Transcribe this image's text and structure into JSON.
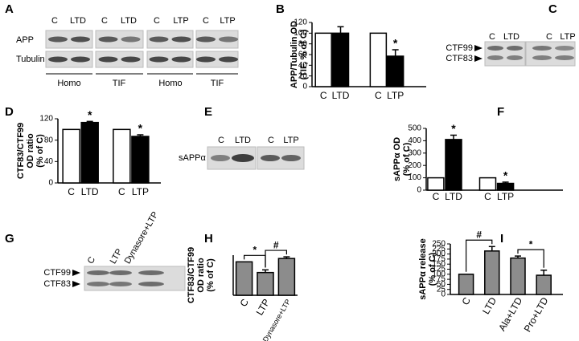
{
  "panel_labels": [
    "A",
    "B",
    "C",
    "D",
    "E",
    "F",
    "G",
    "H",
    "I"
  ],
  "blots": {
    "A": {
      "lanes": [
        "C",
        "LTD",
        "C",
        "LTD",
        "C",
        "LTP",
        "C",
        "LTP"
      ],
      "rows": [
        "APP",
        "Tubulin"
      ],
      "groups": [
        "Homo",
        "TIF",
        "Homo",
        "TIF"
      ]
    },
    "C": {
      "lanes": [
        "C",
        "LTD",
        "C",
        "LTP"
      ],
      "bands": [
        "CTF99",
        "CTF83"
      ]
    },
    "E": {
      "lanes": [
        "C",
        "LTD",
        "C",
        "LTP"
      ],
      "rows": [
        "sAPPα"
      ]
    },
    "G": {
      "lanes": [
        "C",
        "LTP",
        "Dynasore+LTP"
      ],
      "bands": [
        "CTF99",
        "CTF83"
      ]
    }
  },
  "chart_data": [
    {
      "type": "bar",
      "ylabel": [
        "APP/Tubulin OD",
        "(TIF, % of C)"
      ],
      "categories": [
        "C",
        "LTD",
        "C",
        "LTP"
      ],
      "values": [
        100,
        100,
        100,
        57
      ],
      "errors": [
        null,
        12,
        null,
        12
      ],
      "colors": [
        "#ffffff",
        "#000000",
        "#ffffff",
        "#000000"
      ],
      "markers": [
        null,
        null,
        null,
        "*"
      ],
      "ylim": [
        0,
        120
      ],
      "yticks": [
        0,
        20,
        40,
        60,
        80,
        100,
        120
      ]
    },
    {
      "type": "bar",
      "ylabel": [
        "CTF83/CTF99",
        "OD ratio",
        "(% of C)"
      ],
      "categories": [
        "C",
        "LTD",
        "C",
        "LTP"
      ],
      "values": [
        100,
        113,
        100,
        87
      ],
      "errors": [
        null,
        2,
        null,
        3
      ],
      "colors": [
        "#ffffff",
        "#000000",
        "#ffffff",
        "#000000"
      ],
      "markers": [
        null,
        "*",
        null,
        "*"
      ],
      "ylim": [
        0,
        120
      ],
      "yticks": [
        0,
        40,
        80,
        120
      ]
    },
    {
      "type": "bar",
      "ylabel": [
        "sAPPα OD",
        "(% of C)"
      ],
      "categories": [
        "C",
        "LTD",
        "C",
        "LTP"
      ],
      "values": [
        100,
        410,
        100,
        55
      ],
      "errors": [
        null,
        35,
        null,
        10
      ],
      "colors": [
        "#ffffff",
        "#000000",
        "#ffffff",
        "#000000"
      ],
      "markers": [
        null,
        "*",
        null,
        "*"
      ],
      "ylim": [
        0,
        500
      ],
      "yticks": [
        0,
        100,
        200,
        300,
        400,
        500
      ]
    },
    {
      "type": "bar",
      "ylabel": [
        "CTF83/CTF99",
        "OD ratio",
        "(% of C)"
      ],
      "categories": [
        "C",
        "LTP",
        "Dynasore+LTP"
      ],
      "values": [
        100,
        68,
        110
      ],
      "errors": [
        null,
        8,
        5
      ],
      "colors": [
        "#8c8c8c",
        "#8c8c8c",
        "#8c8c8c"
      ],
      "brackets": [
        {
          "categories": [
            "C",
            "LTP"
          ],
          "label": "*"
        },
        {
          "categories": [
            "LTP",
            "Dynasore+LTP"
          ],
          "label": "#"
        }
      ],
      "ylim": [
        0,
        120
      ]
    },
    {
      "type": "bar",
      "ylabel": [
        "sAPPα release",
        "(% of C)"
      ],
      "categories": [
        "C",
        "LTD",
        "Ala+LTD",
        "Pro+LTD"
      ],
      "values": [
        100,
        215,
        180,
        95
      ],
      "errors": [
        null,
        22,
        10,
        25
      ],
      "colors": [
        "#8c8c8c",
        "#8c8c8c",
        "#8c8c8c",
        "#8c8c8c"
      ],
      "brackets": [
        {
          "categories": [
            "C",
            "LTD"
          ],
          "label": "#"
        },
        {
          "categories": [
            "Ala+LTD",
            "Pro+LTD"
          ],
          "label": "*"
        }
      ],
      "ylim": [
        0,
        250
      ],
      "yticks": [
        0,
        25,
        50,
        75,
        100,
        125,
        150,
        175,
        200,
        225,
        250
      ]
    }
  ]
}
